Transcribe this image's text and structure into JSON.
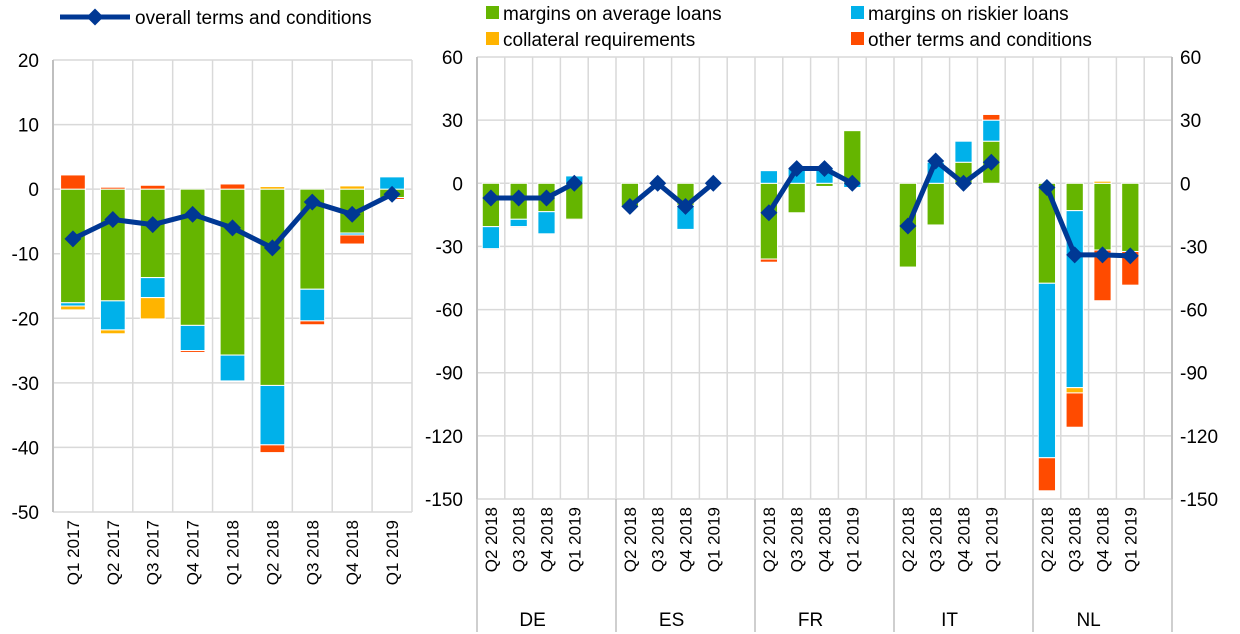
{
  "colors": {
    "green": "#65b500",
    "blue": "#00b1ea",
    "yellow": "#ffb400",
    "orange": "#ff4b00",
    "line": "#003894",
    "grid": "#d9d9d9"
  },
  "legend": {
    "line": "overall terms and conditions",
    "green": "margins on average loans",
    "blue": "margins on riskier loans",
    "yellow": "collateral requirements",
    "orange": "other terms and conditions"
  },
  "chart_data": [
    {
      "type": "bar",
      "stacked": true,
      "ylim": [
        -50,
        20
      ],
      "yticks": [
        "20",
        "10",
        "0",
        "-10",
        "-20",
        "-30",
        "-40",
        "-50"
      ],
      "categories": [
        "Q1 2017",
        "Q2 2017",
        "Q3 2017",
        "Q4 2017",
        "Q1 2018",
        "Q2 2018",
        "Q3 2018",
        "Q4 2018",
        "Q1 2019"
      ],
      "series": [
        {
          "name": "margins on average loans",
          "key": "green",
          "values": [
            -17.6,
            -17.3,
            -13.7,
            -21.1,
            -25.7,
            -30.4,
            -15.5,
            -6.8,
            -1.3
          ]
        },
        {
          "name": "margins on riskier loans",
          "key": "blue",
          "values": [
            -0.5,
            -4.5,
            -3.1,
            -3.9,
            -4.0,
            -9.2,
            -4.9,
            -0.3,
            1.9
          ]
        },
        {
          "name": "collateral requirements",
          "key": "yellow",
          "values": [
            -0.6,
            -0.6,
            -3.3,
            0,
            0,
            0.4,
            0,
            0.5,
            0
          ]
        },
        {
          "name": "other terms and conditions",
          "key": "orange",
          "values": [
            2.2,
            0.3,
            0.6,
            -0.3,
            0.8,
            -1.2,
            -0.6,
            -1.4,
            -0.3
          ]
        }
      ],
      "line": {
        "name": "overall terms and conditions",
        "values": [
          -7.7,
          -4.7,
          -5.5,
          -3.9,
          -6.0,
          -9.1,
          -2.0,
          -3.9,
          -0.8
        ]
      }
    },
    {
      "type": "bar",
      "stacked": true,
      "ylim": [
        -150,
        60
      ],
      "yticks": [
        "60",
        "30",
        "0",
        "-30",
        "-60",
        "-90",
        "-120",
        "-150"
      ],
      "groups": [
        {
          "name": "DE",
          "categories": [
            "Q2 2018",
            "Q3 2018",
            "Q4 2018",
            "Q1 2019"
          ]
        },
        {
          "name": "ES",
          "categories": [
            "Q2 2018",
            "Q3 2018",
            "Q4 2018",
            "Q1 2019"
          ]
        },
        {
          "name": "FR",
          "categories": [
            "Q2 2018",
            "Q3 2018",
            "Q4 2018",
            "Q1 2019"
          ]
        },
        {
          "name": "IT",
          "categories": [
            "Q2 2018",
            "Q3 2018",
            "Q4 2018",
            "Q1 2019"
          ]
        },
        {
          "name": "NL",
          "categories": [
            "Q2 2018",
            "Q3 2018",
            "Q4 2018",
            "Q1 2019"
          ]
        }
      ],
      "series": [
        {
          "name": "margins on average loans",
          "key": "green",
          "values": [
            -20.6,
            -17.1,
            -13.5,
            -17.1,
            -11,
            0,
            -10.5,
            0,
            -36,
            -14,
            -1.5,
            25,
            -39.8,
            -19.8,
            10,
            20,
            -47.5,
            -13,
            -31.7,
            -32.4
          ]
        },
        {
          "name": "margins on riskier loans",
          "key": "blue",
          "values": [
            -10.5,
            -3.5,
            -10.5,
            3.5,
            0,
            0,
            -11.4,
            0,
            6,
            7,
            7,
            -2,
            0,
            10,
            10,
            10,
            -82.9,
            -84.1,
            0,
            0
          ]
        },
        {
          "name": "collateral requirements",
          "key": "yellow",
          "values": [
            0,
            0,
            0,
            0,
            0,
            0,
            0,
            0,
            0,
            0,
            0,
            0,
            0,
            0,
            0,
            0,
            0,
            -2.5,
            1,
            0
          ]
        },
        {
          "name": "other terms and conditions",
          "key": "orange",
          "values": [
            -0.5,
            -0.5,
            0,
            -0.5,
            0,
            0,
            0,
            0,
            -1.5,
            0,
            0,
            0,
            0,
            0,
            0,
            2.7,
            -15.7,
            -16.3,
            -24.1,
            -16
          ]
        }
      ],
      "line": {
        "name": "overall terms and conditions",
        "values": [
          -7,
          -7,
          -7,
          0,
          -11,
          0,
          -11,
          0,
          -14,
          7,
          7,
          0,
          -20.3,
          10.6,
          0,
          10,
          -2,
          -34,
          -34,
          -34.5
        ]
      }
    }
  ]
}
